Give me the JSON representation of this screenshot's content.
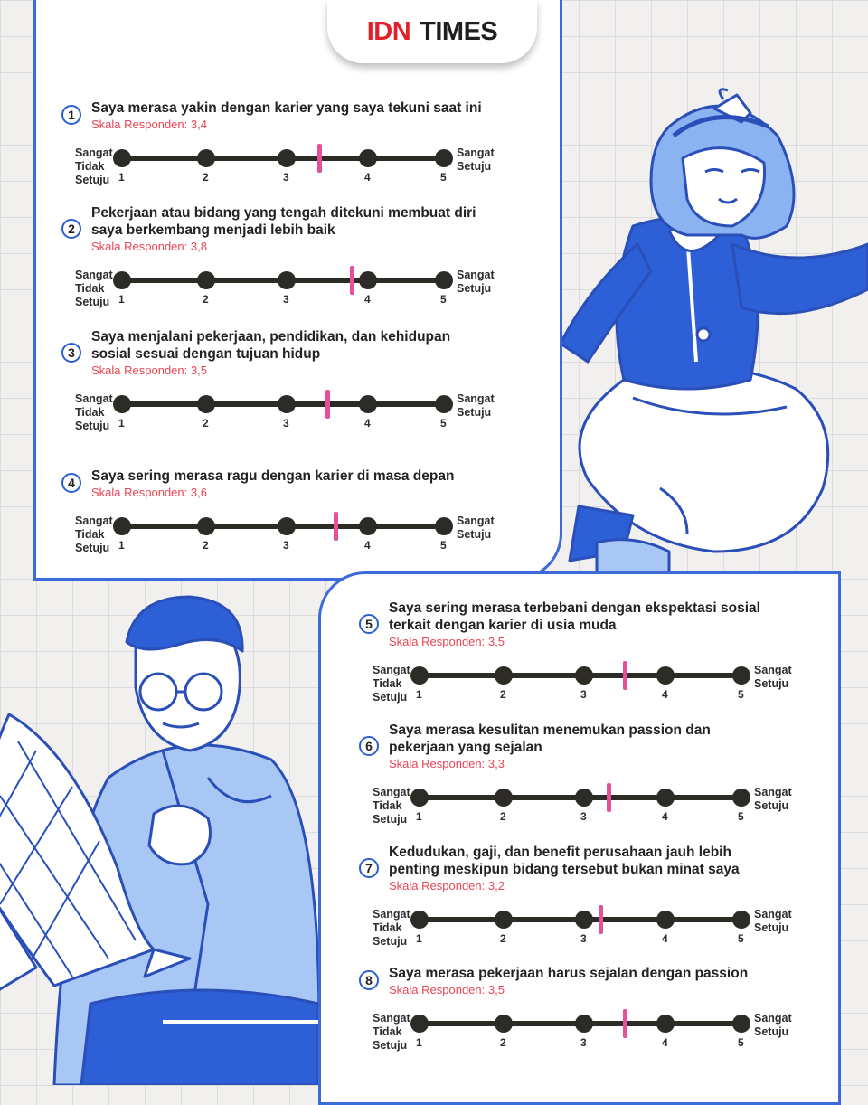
{
  "brand": {
    "idn": "IDN",
    "times": "TIMES"
  },
  "scale": {
    "left_label": [
      "Sangat",
      "Tidak",
      "Setuju"
    ],
    "right_label": [
      "Sangat",
      "Setuju"
    ],
    "ticks": [
      "1",
      "2",
      "3",
      "4",
      "5"
    ],
    "min": 1,
    "max": 5
  },
  "questions": [
    {
      "number": "1",
      "text": [
        "Saya merasa yakin dengan karier yang saya tekuni saat ini"
      ],
      "skala": "Skala Responden: 3,4",
      "value": 3.4
    },
    {
      "number": "2",
      "text": [
        "Pekerjaan atau bidang yang tengah ditekuni membuat diri",
        "saya berkembang menjadi lebih baik"
      ],
      "skala": "Skala Responden: 3,8",
      "value": 3.8
    },
    {
      "number": "3",
      "text": [
        "Saya menjalani pekerjaan, pendidikan, dan kehidupan",
        "sosial sesuai dengan tujuan hidup"
      ],
      "skala": "Skala Responden: 3,5",
      "value": 3.5
    },
    {
      "number": "4",
      "text": [
        "Saya sering merasa ragu dengan karier di masa depan"
      ],
      "skala": "Skala Responden: 3,6",
      "value": 3.6
    },
    {
      "number": "5",
      "text": [
        "Saya sering merasa terbebani dengan ekspektasi sosial",
        "terkait dengan karier di usia muda"
      ],
      "skala": "Skala Responden: 3,5",
      "value": 3.5
    },
    {
      "number": "6",
      "text": [
        "Saya merasa kesulitan menemukan passion dan",
        "pekerjaan yang sejalan"
      ],
      "skala": "Skala Responden: 3,3",
      "value": 3.3
    },
    {
      "number": "7",
      "text": [
        "Kedudukan, gaji, dan benefit perusahaan jauh lebih",
        "penting meskipun bidang tersebut bukan minat saya"
      ],
      "skala": "Skala Responden: 3,2",
      "value": 3.2
    },
    {
      "number": "8",
      "text": [
        "Saya merasa pekerjaan harus sejalan dengan passion"
      ],
      "skala": "Skala Responden: 3,5",
      "value": 3.5
    }
  ],
  "colors": {
    "accent_blue": "#3c6ad8",
    "marker_pink": "#e6509a",
    "skala_red": "#e94553",
    "track_dark": "#2c2b25"
  }
}
